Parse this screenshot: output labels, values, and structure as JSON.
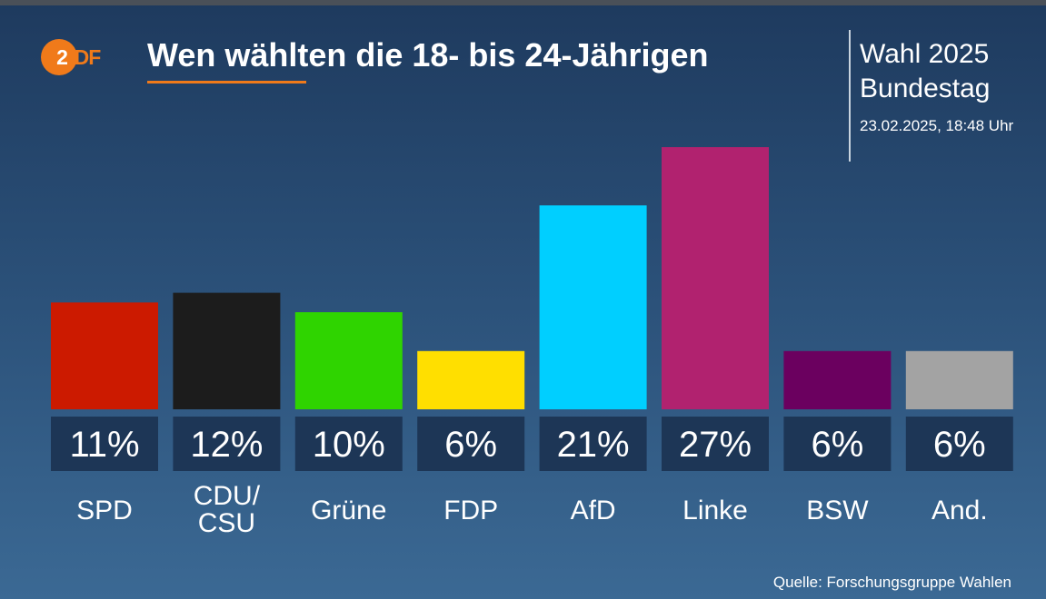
{
  "header": {
    "logo_text": "ZDF",
    "title": "Wen wählten die 18- bis 24-Jährigen",
    "election_line1": "Wahl 2025",
    "election_line2": "Bundestag",
    "timestamp": "23.02.2025, 18:48 Uhr"
  },
  "footer": {
    "source": "Quelle: Forschungsgruppe Wahlen"
  },
  "colors": {
    "accent": "#f07a1a",
    "value_box": "#1d3656"
  },
  "chart_data": {
    "type": "bar",
    "title": "Wen wählten die 18- bis 24-Jährigen",
    "xlabel": "",
    "ylabel": "",
    "ylim": [
      0,
      30
    ],
    "grid": false,
    "categories": [
      "SPD",
      "CDU/\nCSU",
      "Grüne",
      "FDP",
      "AfD",
      "Linke",
      "BSW",
      "And."
    ],
    "values": [
      11,
      12,
      10,
      6,
      21,
      27,
      6,
      6
    ],
    "value_labels": [
      "11%",
      "12%",
      "10%",
      "6%",
      "21%",
      "27%",
      "6%",
      "6%"
    ],
    "colors": [
      "#cc1a00",
      "#1c1c1c",
      "#2fd400",
      "#ffdf00",
      "#00cfff",
      "#b1226f",
      "#6b005f",
      "#a3a3a3"
    ]
  }
}
